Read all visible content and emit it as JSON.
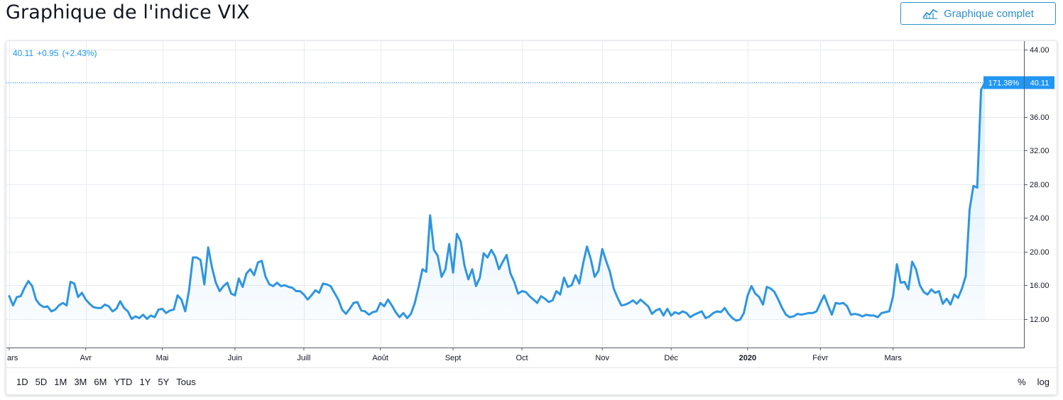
{
  "header": {
    "title": "Graphique de l'indice VIX",
    "full_chart_label": "Graphique complet"
  },
  "legend": {
    "last": "40.11",
    "change": "+0.95",
    "change_pct": "(+2.43%)"
  },
  "colors": {
    "line": "#2e95e0",
    "accent": "#2196f3",
    "grid": "#e8ecf0",
    "text": "#131722"
  },
  "range_buttons": [
    "1D",
    "5D",
    "1M",
    "3M",
    "6M",
    "YTD",
    "1Y",
    "5Y",
    "Tous"
  ],
  "scale_toggles": {
    "percent": "%",
    "log": "log"
  },
  "chart_data": {
    "type": "area",
    "title": "Graphique de l'indice VIX",
    "xlabel": "",
    "ylabel": "",
    "ylim": [
      8.6,
      45.0
    ],
    "y_ticks": [
      "12.00",
      "16.00",
      "20.00",
      "24.00",
      "28.00",
      "32.00",
      "36.00",
      "40.00",
      "44.00"
    ],
    "y_tick_values": [
      12,
      16,
      20,
      24,
      28,
      32,
      36,
      40,
      44
    ],
    "x_month_labels": [
      {
        "label": "Mars",
        "idx": 0
      },
      {
        "label": "Avr",
        "idx": 20
      },
      {
        "label": "Mai",
        "idx": 40
      },
      {
        "label": "Juin",
        "idx": 59
      },
      {
        "label": "Juill",
        "idx": 77
      },
      {
        "label": "Août",
        "idx": 97
      },
      {
        "label": "Sept",
        "idx": 116
      },
      {
        "label": "Oct",
        "idx": 134
      },
      {
        "label": "Nov",
        "idx": 155
      },
      {
        "label": "Déc",
        "idx": 173
      },
      {
        "label": "2020",
        "idx": 193,
        "bold": true
      },
      {
        "label": "Févr",
        "idx": 212
      },
      {
        "label": "Mars",
        "idx": 231
      }
    ],
    "last_value_label": "40.11",
    "last_value_pct_label": "171.38%",
    "series": [
      {
        "values": [
          14.7,
          13.6,
          14.6,
          14.7,
          15.7,
          16.5,
          15.9,
          14.3,
          13.7,
          13.4,
          13.5,
          12.9,
          13.1,
          13.6,
          13.9,
          13.6,
          16.4,
          16.2,
          14.6,
          15.1,
          14.3,
          13.8,
          13.4,
          13.3,
          13.3,
          13.7,
          13.5,
          12.9,
          13.2,
          14.1,
          13.3,
          12.9,
          12.0,
          12.3,
          12.1,
          12.5,
          12.0,
          12.4,
          12.2,
          13.1,
          13.2,
          12.7,
          13.0,
          13.1,
          14.8,
          14.3,
          12.9,
          15.4,
          19.3,
          19.3,
          19.0,
          16.1,
          20.5,
          18.1,
          16.3,
          15.3,
          15.9,
          16.3,
          15.0,
          14.8,
          16.8,
          15.8,
          17.4,
          17.9,
          17.2,
          18.7,
          18.9,
          17.0,
          16.1,
          15.9,
          16.3,
          15.9,
          16.0,
          15.8,
          15.7,
          15.3,
          15.3,
          14.9,
          14.3,
          14.8,
          15.4,
          15.1,
          16.2,
          16.1,
          15.9,
          15.1,
          14.3,
          13.1,
          12.6,
          13.2,
          13.9,
          14.0,
          13.0,
          12.9,
          12.5,
          12.8,
          12.9,
          13.9,
          13.5,
          14.3,
          13.6,
          12.8,
          12.2,
          12.7,
          12.1,
          12.6,
          13.9,
          15.8,
          17.9,
          17.6,
          24.3,
          20.2,
          19.5,
          17.0,
          17.9,
          20.9,
          17.5,
          22.1,
          21.2,
          18.3,
          16.7,
          17.9,
          15.9,
          16.9,
          19.8,
          19.3,
          20.2,
          19.4,
          17.9,
          18.8,
          19.6,
          17.4,
          16.4,
          15.0,
          15.3,
          15.2,
          14.7,
          14.3,
          13.9,
          14.7,
          14.4,
          14.0,
          14.2,
          15.3,
          14.9,
          16.9,
          15.8,
          16.0,
          17.2,
          16.2,
          18.6,
          20.6,
          19.1,
          17.0,
          17.7,
          20.3,
          18.9,
          17.6,
          15.6,
          14.5,
          13.6,
          13.7,
          13.9,
          14.2,
          13.8,
          14.3,
          13.9,
          13.5,
          12.6,
          13.0,
          13.2,
          12.4,
          13.2,
          12.4,
          12.8,
          12.6,
          12.9,
          12.7,
          12.2,
          12.5,
          12.7,
          12.9,
          12.1,
          12.3,
          12.7,
          12.9,
          12.8,
          13.3,
          12.6,
          12.1,
          11.8,
          11.9,
          12.7,
          14.8,
          15.9,
          15.0,
          14.6,
          13.7,
          15.8,
          15.6,
          15.2,
          14.3,
          13.3,
          12.5,
          12.2,
          12.3,
          12.6,
          12.5,
          12.6,
          12.7,
          12.7,
          12.9,
          13.9,
          14.8,
          13.6,
          12.5,
          13.9,
          13.8,
          13.9,
          13.5,
          12.5,
          12.6,
          12.5,
          12.3,
          12.5,
          12.4,
          12.4,
          12.2,
          12.7,
          12.8,
          12.9,
          14.7,
          18.5,
          16.3,
          16.4,
          15.5,
          18.8,
          17.9,
          16.0,
          15.2,
          14.9,
          15.5,
          15.1,
          15.3,
          13.8,
          14.4,
          13.7,
          14.9,
          14.5,
          15.6,
          17.1,
          25.0,
          27.8,
          27.6,
          39.2,
          40.1
        ]
      }
    ]
  }
}
